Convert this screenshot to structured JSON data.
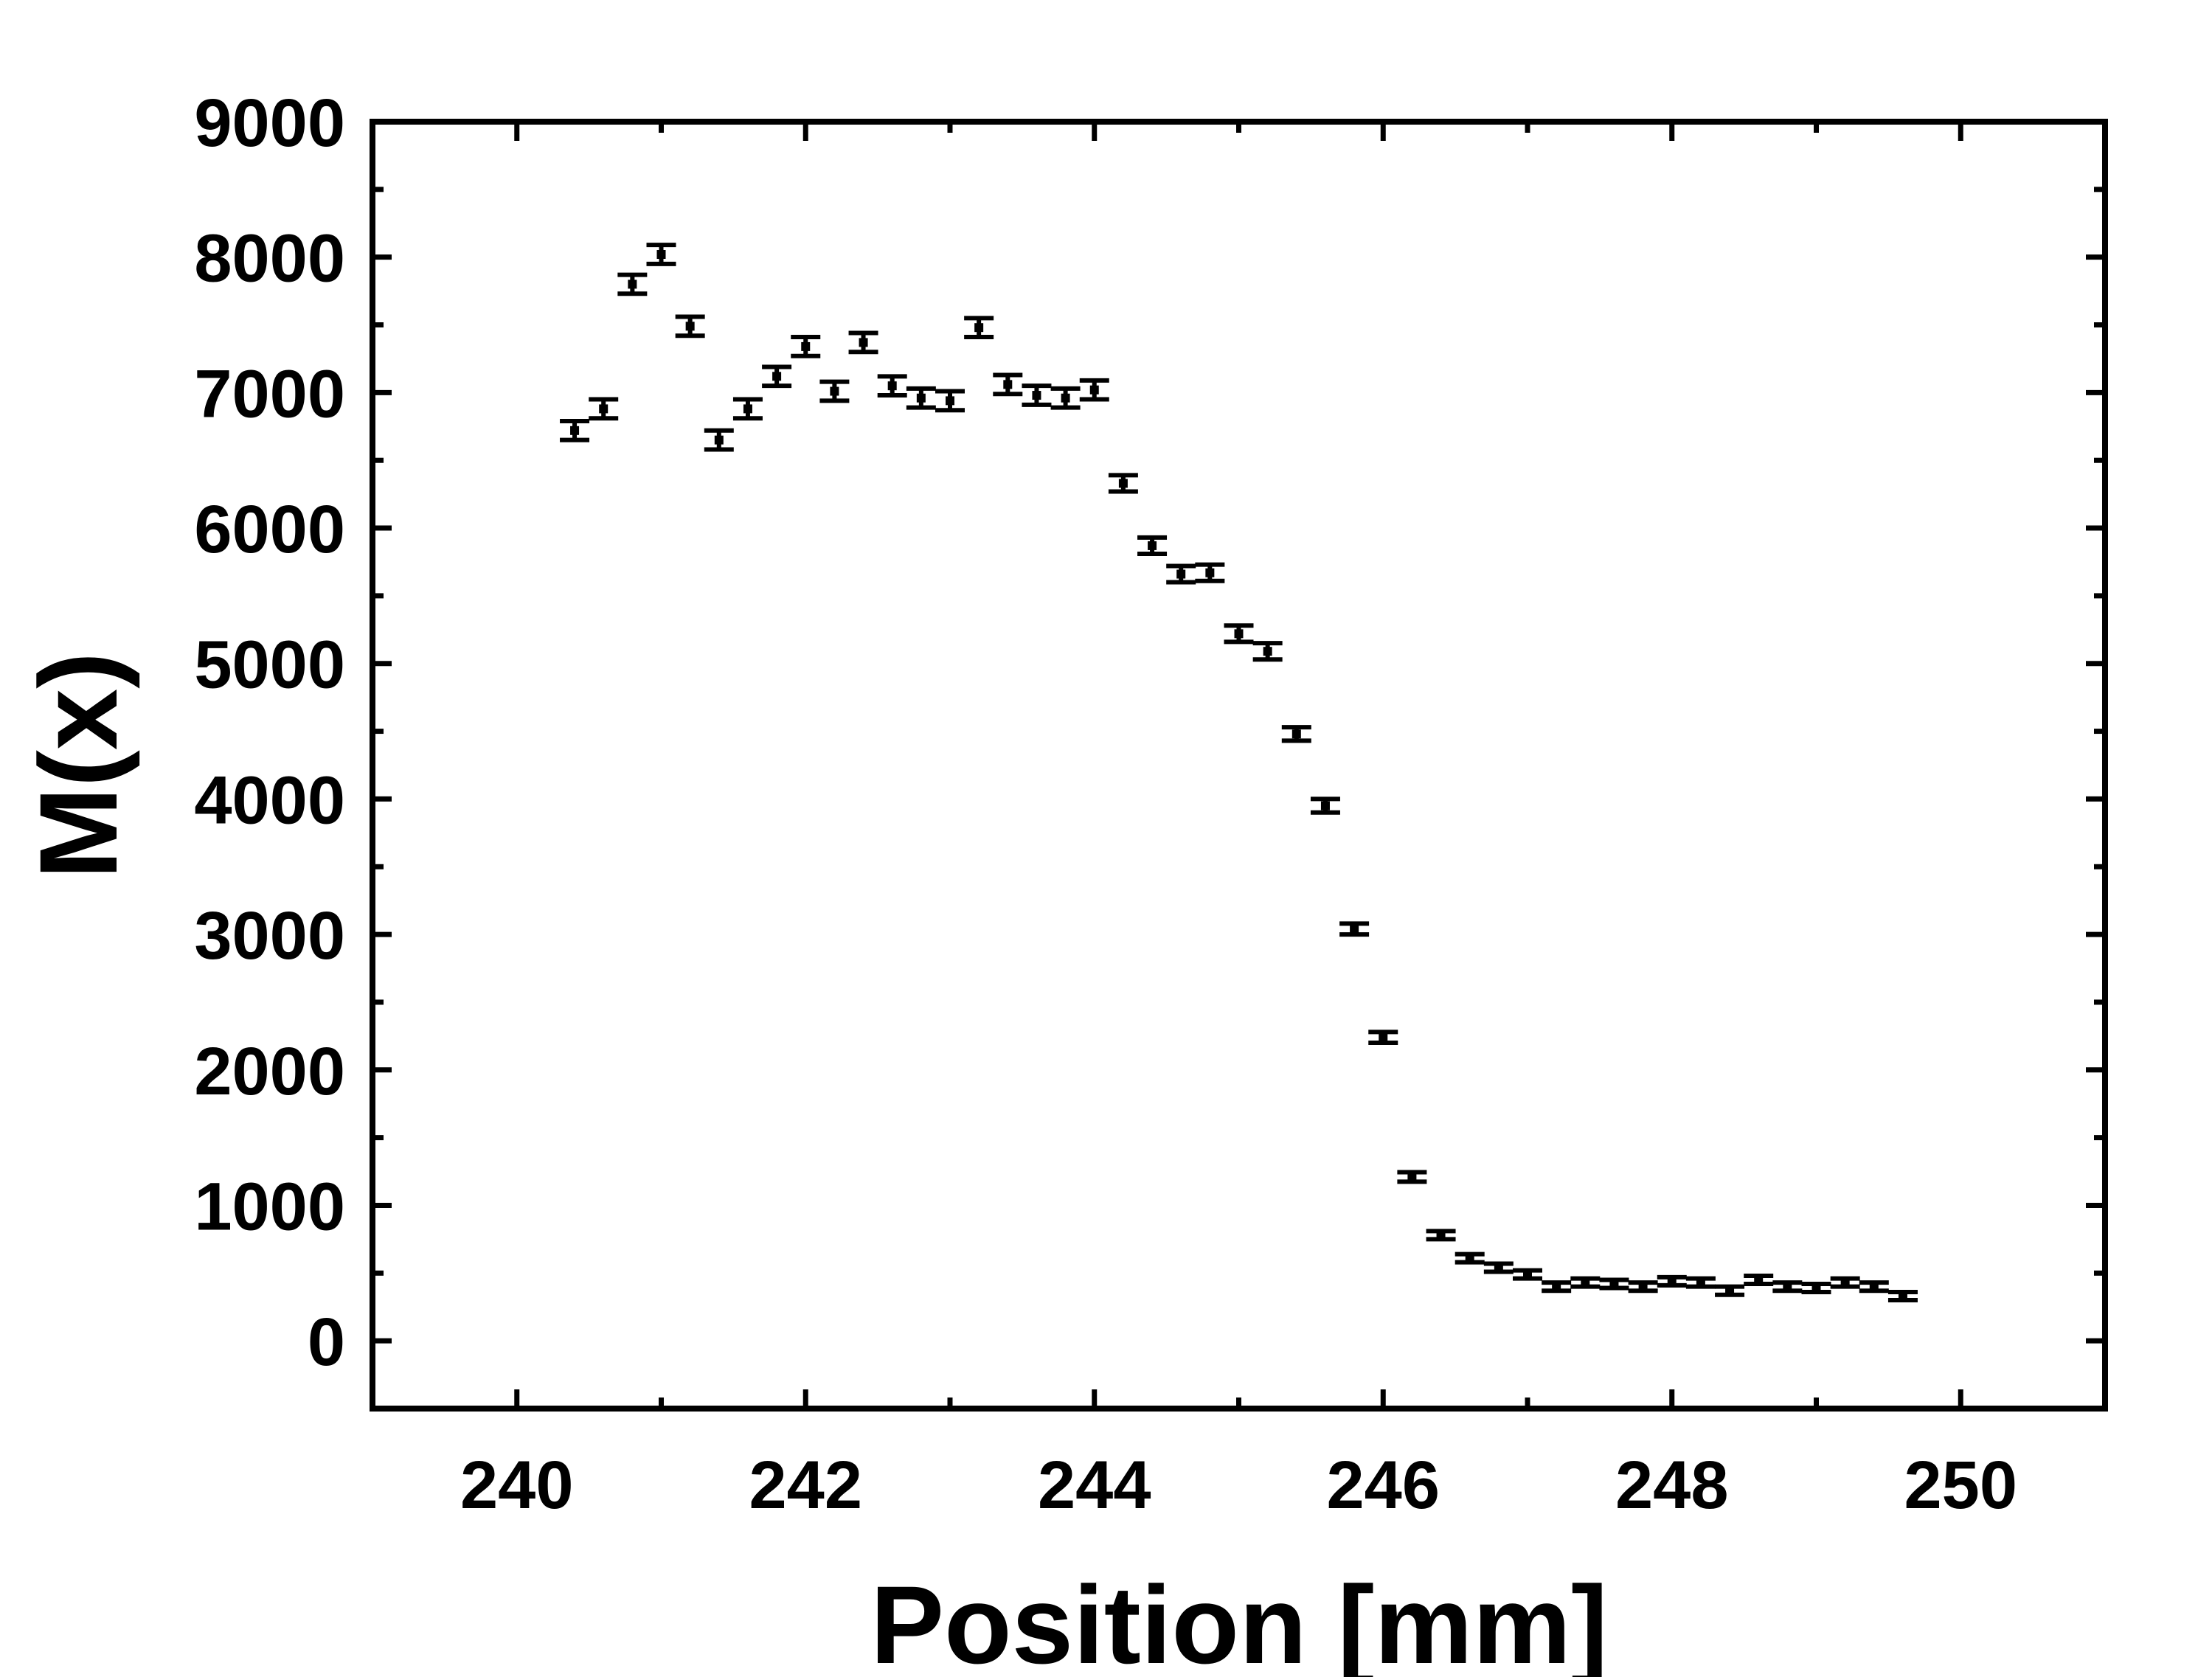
{
  "chart_data": {
    "type": "scatter",
    "title": "",
    "xlabel": "Position [mm]",
    "ylabel": "M(x)",
    "xlim": [
      239,
      251
    ],
    "ylim": [
      -500,
      9000
    ],
    "x_ticks": [
      240,
      242,
      244,
      246,
      248,
      250
    ],
    "x_tick_labels": [
      "240",
      "242",
      "244",
      "246",
      "248",
      "250"
    ],
    "y_ticks": [
      0,
      1000,
      2000,
      3000,
      4000,
      5000,
      6000,
      7000,
      8000,
      9000
    ],
    "y_tick_labels": [
      "0",
      "1000",
      "2000",
      "3000",
      "4000",
      "5000",
      "6000",
      "7000",
      "8000",
      "9000"
    ],
    "grid": false,
    "legend": "none",
    "marker_color": "#000000",
    "series": [
      {
        "x": [
          240.4,
          240.6,
          240.8,
          241.0,
          241.2,
          241.4,
          241.6,
          241.8,
          242.0,
          242.2,
          242.4,
          242.6,
          242.8,
          243.0,
          243.2,
          243.4,
          243.6,
          243.8,
          244.0,
          244.2,
          244.4,
          244.6,
          244.8,
          245.0,
          245.2,
          245.4,
          245.6,
          245.8,
          246.0,
          246.2,
          246.4,
          246.6,
          246.8,
          247.0,
          247.2,
          247.4,
          247.6,
          247.8,
          248.0,
          248.2,
          248.4,
          248.6,
          248.8,
          249.0,
          249.2,
          249.4,
          249.6
        ],
        "y": [
          6720,
          6880,
          7800,
          8020,
          7490,
          6650,
          6880,
          7120,
          7340,
          7010,
          7370,
          7050,
          6960,
          6940,
          7480,
          7060,
          6980,
          6960,
          7020,
          6330,
          5870,
          5660,
          5670,
          5220,
          5090,
          4480,
          3950,
          3040,
          2240,
          1210,
          780,
          610,
          540,
          490,
          400,
          430,
          420,
          400,
          440,
          430,
          370,
          450,
          400,
          390,
          430,
          400,
          330
        ],
        "err": [
          70,
          70,
          70,
          70,
          70,
          70,
          70,
          70,
          70,
          70,
          70,
          70,
          70,
          70,
          70,
          70,
          70,
          70,
          70,
          60,
          60,
          60,
          60,
          60,
          60,
          50,
          50,
          40,
          40,
          35,
          30,
          30,
          30,
          30,
          30,
          30,
          30,
          30,
          30,
          30,
          30,
          30,
          30,
          30,
          30,
          30,
          30
        ]
      }
    ]
  }
}
